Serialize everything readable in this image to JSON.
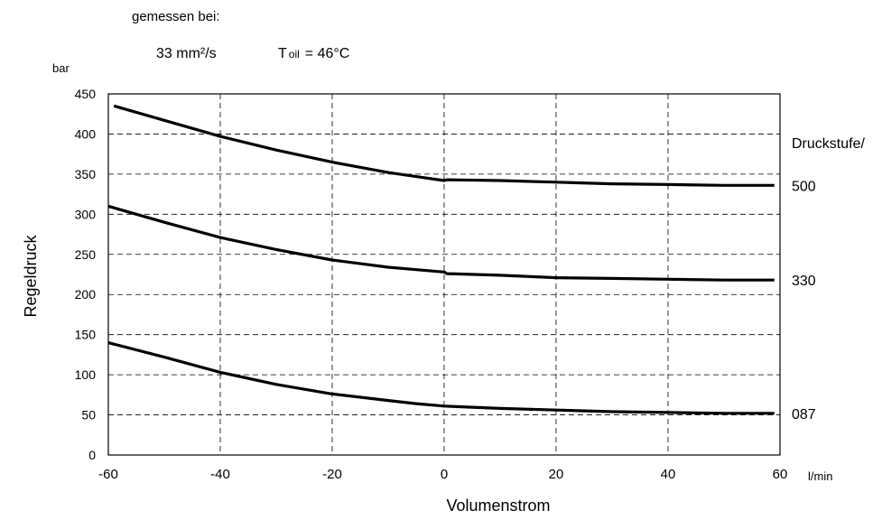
{
  "header": {
    "measured_label": "gemessen bei:",
    "viscosity": "33 mm²/s",
    "temp_T": "T",
    "temp_sub": "oil",
    "temp_value": "= 46°C"
  },
  "chart_data": {
    "type": "line",
    "title": "",
    "xlabel": "Volumenstrom",
    "x_unit": "l/min",
    "ylabel": "Regeldruck",
    "y_unit": "bar",
    "xlim": [
      -60,
      60
    ],
    "ylim": [
      0,
      450
    ],
    "x_ticks": [
      -60,
      -40,
      -20,
      0,
      20,
      40,
      60
    ],
    "y_ticks": [
      0,
      50,
      100,
      150,
      200,
      250,
      300,
      350,
      400,
      450
    ],
    "grid": true,
    "legend_title": "Druckstufe/",
    "series": [
      {
        "name": "500",
        "x": [
          -59,
          -50,
          -40,
          -30,
          -20,
          -10,
          -5,
          0,
          0.5,
          10,
          20,
          30,
          40,
          50,
          59
        ],
        "y": [
          435,
          417,
          397,
          380,
          365,
          352,
          347,
          342,
          343,
          342,
          340,
          338,
          337,
          336,
          336
        ]
      },
      {
        "name": "330",
        "x": [
          -60,
          -50,
          -40,
          -30,
          -20,
          -10,
          -5,
          0,
          0.5,
          10,
          20,
          30,
          40,
          50,
          59
        ],
        "y": [
          310,
          290,
          271,
          256,
          243,
          234,
          231,
          228,
          226,
          224,
          221,
          220,
          219,
          218,
          218
        ]
      },
      {
        "name": "087",
        "x": [
          -60,
          -50,
          -40,
          -30,
          -20,
          -10,
          -5,
          0,
          10,
          20,
          30,
          40,
          50,
          59
        ],
        "y": [
          140,
          122,
          103,
          88,
          76,
          68,
          64,
          61,
          58,
          56,
          54,
          53,
          52,
          52
        ]
      }
    ]
  }
}
